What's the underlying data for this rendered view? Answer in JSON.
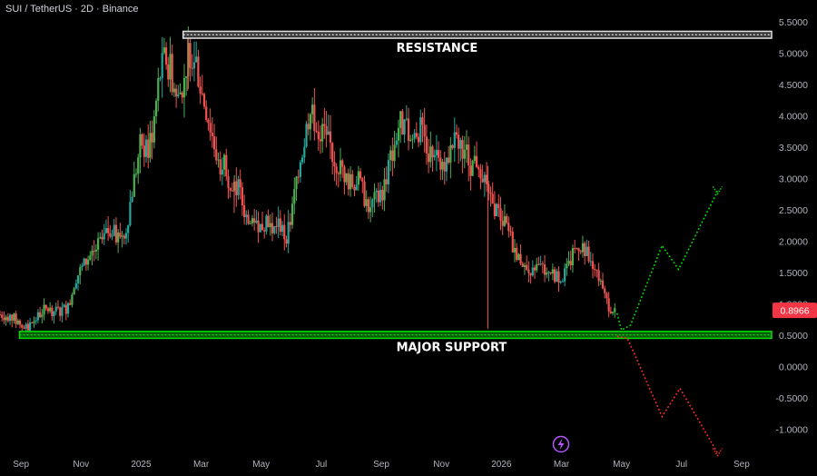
{
  "header": {
    "title": "SUI / TetherUS · 2D · Binance"
  },
  "price_badge": {
    "value": "0.8966",
    "color": "#f23645"
  },
  "colors": {
    "up": "#26a69a",
    "up_alt": "#4caf50",
    "down": "#ef5350",
    "support": "#00e000",
    "resistance": "#e0e0e0",
    "axis_text": "#b2b5be"
  },
  "chart_data": {
    "type": "candlestick",
    "title": "SUI / TetherUS · 2D · Binance",
    "y_ticks": [
      "-1.0000",
      "-0.5000",
      "0.0000",
      "0.5000",
      "1.0000",
      "1.5000",
      "2.0000",
      "2.5000",
      "3.0000",
      "3.5000",
      "4.0000",
      "4.5000",
      "5.0000",
      "5.5000"
    ],
    "y_tick_values": [
      -1,
      -0.5,
      0,
      0.5,
      1,
      1.5,
      2,
      2.5,
      3,
      3.5,
      4,
      4.5,
      5,
      5.5
    ],
    "ylim": [
      -1.4,
      5.85
    ],
    "x_ticks": [
      "Sep",
      "Nov",
      "2025",
      "Mar",
      "May",
      "Jul",
      "Sep",
      "Nov",
      "2026",
      "Mar",
      "May",
      "Jul",
      "Sep"
    ],
    "x_tick_months": [
      0,
      2,
      4,
      6,
      8,
      10,
      12,
      14,
      16,
      18,
      20,
      22,
      24
    ],
    "xlim_months": [
      -0.7,
      25
    ],
    "levels": [
      {
        "name": "RESISTANCE",
        "low": 5.24,
        "high": 5.35,
        "color": "#e0e0e0"
      },
      {
        "name": "MAJOR SUPPORT",
        "low": 0.45,
        "high": 0.56,
        "color": "#00e000"
      }
    ],
    "price_path": [
      [
        -0.7,
        0.83
      ],
      [
        -0.3,
        0.79
      ],
      [
        0.0,
        0.66
      ],
      [
        0.2,
        0.6
      ],
      [
        0.4,
        0.72
      ],
      [
        0.8,
        0.92
      ],
      [
        1.2,
        0.88
      ],
      [
        1.6,
        0.95
      ],
      [
        1.8,
        1.4
      ],
      [
        2.2,
        1.7
      ],
      [
        2.6,
        1.95
      ],
      [
        3.0,
        2.2
      ],
      [
        3.2,
        2.05
      ],
      [
        3.5,
        2.2
      ],
      [
        3.7,
        2.8
      ],
      [
        4.0,
        3.6
      ],
      [
        4.2,
        3.4
      ],
      [
        4.4,
        3.8
      ],
      [
        4.6,
        4.6
      ],
      [
        4.8,
        4.95
      ],
      [
        5.0,
        4.7
      ],
      [
        5.2,
        4.2
      ],
      [
        5.4,
        4.55
      ],
      [
        5.6,
        5.05
      ],
      [
        5.8,
        4.95
      ],
      [
        6.0,
        4.4
      ],
      [
        6.2,
        4.05
      ],
      [
        6.4,
        3.6
      ],
      [
        6.6,
        3.2
      ],
      [
        6.8,
        3.3
      ],
      [
        7.0,
        2.8
      ],
      [
        7.2,
        2.9
      ],
      [
        7.4,
        2.55
      ],
      [
        7.6,
        2.25
      ],
      [
        7.8,
        2.4
      ],
      [
        8.0,
        2.2
      ],
      [
        8.2,
        2.4
      ],
      [
        8.4,
        2.15
      ],
      [
        8.6,
        2.3
      ],
      [
        8.8,
        2.05
      ],
      [
        9.0,
        2.35
      ],
      [
        9.2,
        3.1
      ],
      [
        9.4,
        3.5
      ],
      [
        9.6,
        4.05
      ],
      [
        9.8,
        3.9
      ],
      [
        10.0,
        3.7
      ],
      [
        10.2,
        3.75
      ],
      [
        10.4,
        3.3
      ],
      [
        10.6,
        3.2
      ],
      [
        10.8,
        3.05
      ],
      [
        11.0,
        2.9
      ],
      [
        11.2,
        3.0
      ],
      [
        11.4,
        2.75
      ],
      [
        11.6,
        2.55
      ],
      [
        11.8,
        2.65
      ],
      [
        12.0,
        2.7
      ],
      [
        12.2,
        3.1
      ],
      [
        12.4,
        3.5
      ],
      [
        12.6,
        3.9
      ],
      [
        12.8,
        3.8
      ],
      [
        13.0,
        3.6
      ],
      [
        13.2,
        3.8
      ],
      [
        13.4,
        3.75
      ],
      [
        13.6,
        3.4
      ],
      [
        13.8,
        3.5
      ],
      [
        14.0,
        3.25
      ],
      [
        14.2,
        3.3
      ],
      [
        14.4,
        3.55
      ],
      [
        14.6,
        3.6
      ],
      [
        14.8,
        3.45
      ],
      [
        15.0,
        3.2
      ],
      [
        15.2,
        3.3
      ],
      [
        15.4,
        3.1
      ],
      [
        15.6,
        2.6
      ],
      [
        15.8,
        2.55
      ],
      [
        16.0,
        2.35
      ],
      [
        16.2,
        2.2
      ],
      [
        16.4,
        1.9
      ],
      [
        16.6,
        1.75
      ],
      [
        16.8,
        1.55
      ],
      [
        17.0,
        1.45
      ],
      [
        17.2,
        1.6
      ],
      [
        17.4,
        1.55
      ],
      [
        17.6,
        1.5
      ],
      [
        17.8,
        1.45
      ],
      [
        18.0,
        1.4
      ],
      [
        18.2,
        1.55
      ],
      [
        18.4,
        1.8
      ],
      [
        18.6,
        1.95
      ],
      [
        18.8,
        1.85
      ],
      [
        19.0,
        1.6
      ],
      [
        19.2,
        1.45
      ],
      [
        19.4,
        1.15
      ],
      [
        19.6,
        0.95
      ],
      [
        19.8,
        0.9
      ]
    ],
    "spikes": [
      {
        "month": 5.55,
        "high": 5.34,
        "low": 4.4
      },
      {
        "month": 7.1,
        "high": 3.0,
        "low": 2.45
      },
      {
        "month": 15.55,
        "high": 3.2,
        "low": 0.6
      }
    ],
    "projections": [
      {
        "color": "#00dd00",
        "points": [
          [
            19.85,
            0.85
          ],
          [
            20.0,
            0.58
          ],
          [
            20.3,
            0.66
          ],
          [
            21.35,
            1.93
          ],
          [
            21.9,
            1.55
          ],
          [
            23.2,
            2.8
          ]
        ],
        "end_marker": "down"
      },
      {
        "color": "#ff2a2a",
        "points": [
          [
            19.85,
            0.48
          ],
          [
            20.2,
            0.45
          ],
          [
            21.35,
            -0.8
          ],
          [
            21.95,
            -0.35
          ],
          [
            23.2,
            -1.38
          ]
        ],
        "end_marker": "down"
      }
    ],
    "current_price": 0.8966
  },
  "bolt_icon": {
    "color": "#b455ff"
  }
}
